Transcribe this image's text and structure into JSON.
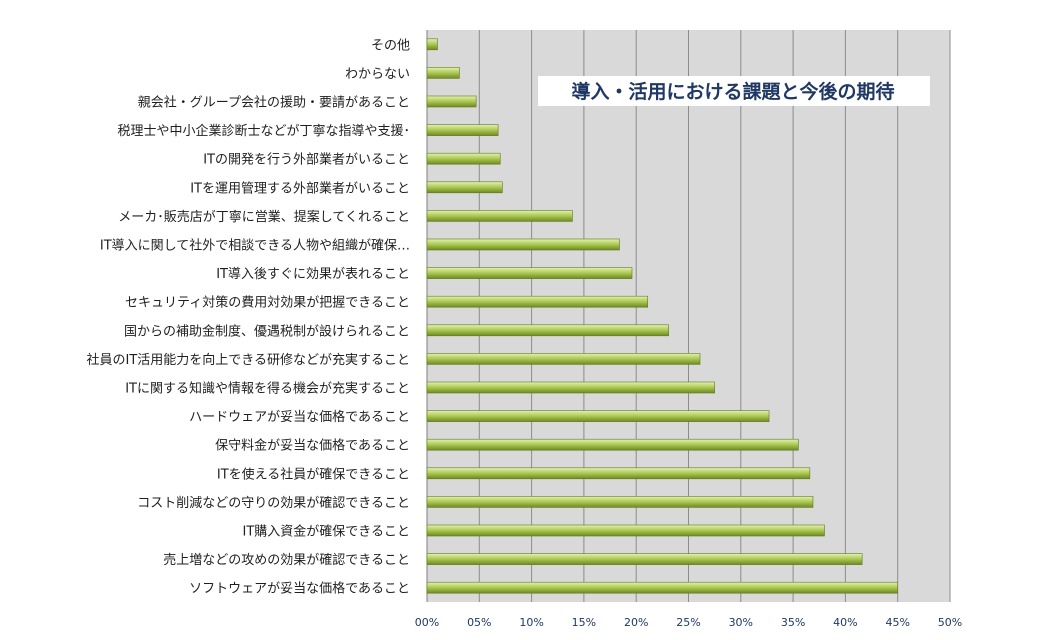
{
  "chart_data": {
    "type": "bar",
    "orientation": "horizontal",
    "title": "導入・活用における課題と今後の期待",
    "categories": [
      "その他",
      "わからない",
      "親会社・グループ会社の援助・要請があること",
      "税理士や中小企業診断士などが丁寧な指導や支援･",
      "ITの開発を行う外部業者がいること",
      "ITを運用管理する外部業者がいること",
      "メーカ･販売店が丁寧に営業、提案してくれること",
      "IT導入に関して社外で相談できる人物や組織が確保…",
      "IT導入後すぐに効果が表れること",
      "セキュリティ対策の費用対効果が把握できること",
      "国からの補助金制度、優遇税制が設けられること",
      "社員のIT活用能力を向上できる研修などが充実すること",
      "ITに関する知識や情報を得る機会が充実すること",
      "ハードウェアが妥当な価格であること",
      "保守料金が妥当な価格であること",
      "ITを使える社員が確保できること",
      "コスト削減などの守りの効果が確認できること",
      "IT購入資金が確保できること",
      "売上増などの攻めの効果が確認できること",
      "ソフトウェアが妥当な価格であること"
    ],
    "values": [
      1.0,
      3.1,
      4.7,
      6.8,
      7.0,
      7.2,
      13.9,
      18.4,
      19.6,
      21.1,
      23.1,
      26.1,
      27.5,
      32.7,
      35.5,
      36.6,
      36.9,
      38.0,
      41.6,
      45.0
    ],
    "x_ticks": [
      "00%",
      "05%",
      "10%",
      "15%",
      "20%",
      "25%",
      "30%",
      "35%",
      "40%",
      "45%",
      "50%"
    ],
    "xlim": [
      0,
      50
    ],
    "grid": true,
    "colors": {
      "bar_top": "#e4f0b4",
      "bar_mid": "#b0cc58",
      "bar_bottom": "#6e8a22",
      "plot_bg": "#d9d9d9",
      "grid": "#8c8c8c",
      "title": "#1f3864",
      "title_bg": "#ffffff",
      "tick_text": "#1f3864",
      "label_text": "#1f1f1f"
    }
  }
}
